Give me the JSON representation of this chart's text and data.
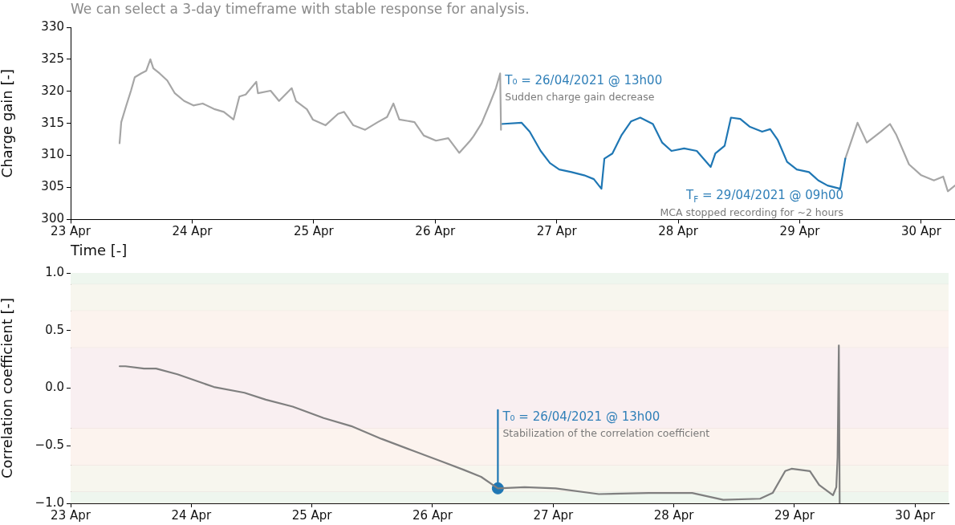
{
  "chart_data": [
    {
      "type": "line",
      "title": "We can select a 3-day timeframe with stable response for analysis.",
      "xlabel": "Time [-]",
      "ylabel": "Charge gain [-]",
      "xlim": [
        "2021-04-23T00:00",
        "2021-04-30T06:40"
      ],
      "xticks": [
        {
          "value": "2021-04-23",
          "label": "23 Apr"
        },
        {
          "value": "2021-04-24",
          "label": "24 Apr"
        },
        {
          "value": "2021-04-25",
          "label": "25 Apr"
        },
        {
          "value": "2021-04-26",
          "label": "26 Apr"
        },
        {
          "value": "2021-04-27",
          "label": "27 Apr"
        },
        {
          "value": "2021-04-28",
          "label": "28 Apr"
        },
        {
          "value": "2021-04-29",
          "label": "29 Apr"
        },
        {
          "value": "2021-04-30",
          "label": "30 Apr"
        }
      ],
      "ylim": [
        300,
        330
      ],
      "yticks": [
        300,
        305,
        310,
        315,
        320,
        325,
        330
      ],
      "grid": false,
      "series": [
        {
          "color": "#a6a6a6",
          "x": [
            "2021-04-23T09:40",
            "2021-04-23T10:00",
            "2021-04-23T10:55",
            "2021-04-23T11:55",
            "2021-04-23T12:40",
            "2021-04-23T13:55",
            "2021-04-23T14:55",
            "2021-04-23T15:45",
            "2021-04-23T16:20",
            "2021-04-23T17:35",
            "2021-04-23T19:05",
            "2021-04-23T20:35",
            "2021-04-23T22:25",
            "2021-04-24T00:15",
            "2021-04-24T02:05",
            "2021-04-24T04:30",
            "2021-04-24T06:15",
            "2021-04-24T08:10",
            "2021-04-24T09:20",
            "2021-04-24T10:35",
            "2021-04-24T12:40",
            "2021-04-24T13:00",
            "2021-04-24T15:30",
            "2021-04-24T17:10",
            "2021-04-24T19:40",
            "2021-04-24T20:30",
            "2021-04-24T22:40",
            "2021-04-24T23:50",
            "2021-04-25T02:20",
            "2021-04-25T04:50",
            "2021-04-25T06:00",
            "2021-04-25T07:50",
            "2021-04-25T10:10",
            "2021-04-25T12:40",
            "2021-04-25T14:30",
            "2021-04-25T15:45",
            "2021-04-25T16:55",
            "2021-04-25T19:55",
            "2021-04-25T21:45",
            "2021-04-26T00:10",
            "2021-04-26T02:35",
            "2021-04-26T04:45",
            "2021-04-26T06:55",
            "2021-04-26T07:35",
            "2021-04-26T09:10",
            "2021-04-26T10:45",
            "2021-04-26T12:00",
            "2021-04-26T12:50",
            "2021-04-26T13:00"
          ],
          "values": [
            311.9,
            315.2,
            317.6,
            320.1,
            322.2,
            322.8,
            323.2,
            325.0,
            323.6,
            322.8,
            321.7,
            319.7,
            318.5,
            317.8,
            318.1,
            317.2,
            316.8,
            315.6,
            319.2,
            319.5,
            321.5,
            319.7,
            320.1,
            318.5,
            320.5,
            318.5,
            317.2,
            315.6,
            314.7,
            316.5,
            316.8,
            314.7,
            314.0,
            315.2,
            316.0,
            318.1,
            315.6,
            315.2,
            313.1,
            312.3,
            312.7,
            310.4,
            312.3,
            313.0,
            315.0,
            318.0,
            320.5,
            322.8,
            314.0
          ]
        },
        {
          "color": "#1f77b4",
          "x": [
            "2021-04-26T13:00",
            "2021-04-26T17:05",
            "2021-04-26T18:40",
            "2021-04-26T20:50",
            "2021-04-26T22:40",
            "2021-04-27T00:30",
            "2021-04-27T02:55",
            "2021-04-27T05:25",
            "2021-04-27T07:20",
            "2021-04-27T08:50",
            "2021-04-27T09:25",
            "2021-04-27T11:00",
            "2021-04-27T12:50",
            "2021-04-27T14:40",
            "2021-04-27T16:30",
            "2021-04-27T19:00",
            "2021-04-27T20:50",
            "2021-04-27T22:40",
            "2021-04-28T01:10",
            "2021-04-28T03:40",
            "2021-04-28T06:25",
            "2021-04-28T07:20",
            "2021-04-28T09:10",
            "2021-04-28T10:25",
            "2021-04-28T12:15",
            "2021-04-28T14:05",
            "2021-04-28T16:35",
            "2021-04-28T18:10",
            "2021-04-28T19:40",
            "2021-04-28T21:30",
            "2021-04-28T23:25",
            "2021-04-29T01:50",
            "2021-04-29T03:40",
            "2021-04-29T05:30",
            "2021-04-29T08:00",
            "2021-04-29T09:00"
          ],
          "values": [
            314.9,
            315.1,
            313.7,
            310.7,
            308.8,
            307.8,
            307.4,
            306.9,
            306.3,
            304.8,
            309.5,
            310.3,
            313.2,
            315.3,
            315.9,
            314.9,
            312.0,
            310.7,
            311.1,
            310.7,
            308.2,
            310.3,
            311.5,
            315.9,
            315.7,
            314.5,
            313.7,
            314.1,
            312.4,
            309.0,
            307.8,
            307.4,
            306.1,
            305.3,
            304.8,
            309.5
          ]
        },
        {
          "color": "#a6a6a6",
          "x": [
            "2021-04-29T09:00",
            "2021-04-29T11:25",
            "2021-04-29T13:15",
            "2021-04-29T16:00",
            "2021-04-29T17:50",
            "2021-04-29T19:05",
            "2021-04-29T21:35",
            "2021-04-30T00:00",
            "2021-04-30T02:30",
            "2021-04-30T04:20",
            "2021-04-30T05:15",
            "2021-04-30T06:40"
          ],
          "values": [
            309.5,
            315.1,
            312.0,
            313.7,
            314.9,
            313.2,
            308.6,
            306.9,
            306.1,
            306.7,
            304.4,
            305.3
          ]
        }
      ],
      "annotations": [
        {
          "text": "T₀ = 26/04/2021 @ 13h00",
          "x": "2021-04-26T12:50",
          "y": 322.8
        },
        {
          "text": "Sudden charge gain decrease",
          "x": "2021-04-26T12:50",
          "y": 322.8
        },
        {
          "text": "T$_{F}$ = 29/04/2021 @ 09h00",
          "x": "2021-04-29T08:00",
          "y": 304.8
        },
        {
          "text": "MCA stopped recording for ~2 hours",
          "x": "2021-04-29T08:00",
          "y": 304.8
        }
      ]
    },
    {
      "type": "line",
      "ylabel": "Correlation coefficient [-]",
      "xlim": [
        "2021-04-23T00:00",
        "2021-04-30T06:40"
      ],
      "xticks": [
        {
          "value": "2021-04-23",
          "label": "23 Apr"
        },
        {
          "value": "2021-04-24",
          "label": "24 Apr"
        },
        {
          "value": "2021-04-25",
          "label": "25 Apr"
        },
        {
          "value": "2021-04-26",
          "label": "26 Apr"
        },
        {
          "value": "2021-04-27",
          "label": "27 Apr"
        },
        {
          "value": "2021-04-28",
          "label": "28 Apr"
        },
        {
          "value": "2021-04-29",
          "label": "29 Apr"
        },
        {
          "value": "2021-04-30",
          "label": "30 Apr"
        }
      ],
      "ylim": [
        -1,
        1
      ],
      "yticks": [
        {
          "value": -1,
          "label": "−1.0"
        },
        {
          "value": -0.5,
          "label": "−0.5"
        },
        {
          "value": 0,
          "label": "0.0"
        },
        {
          "value": 0.5,
          "label": "0.5"
        },
        {
          "value": 1,
          "label": "1.0"
        }
      ],
      "grid": false,
      "bands": [
        {
          "axis": "y",
          "from": 0.9,
          "to": 1,
          "color": "#eef6ee"
        },
        {
          "axis": "y",
          "from": 0.67,
          "to": 0.9,
          "color": "#f7f6ee"
        },
        {
          "axis": "y",
          "from": 0.35,
          "to": 0.67,
          "color": "#fcf3ee"
        },
        {
          "axis": "y",
          "from": -0.35,
          "to": 0.35,
          "color": "#f9eff1"
        },
        {
          "axis": "y",
          "from": -0.67,
          "to": -0.35,
          "color": "#fcf3ee"
        },
        {
          "axis": "y",
          "from": -0.9,
          "to": -0.67,
          "color": "#f7f6ee"
        },
        {
          "axis": "y",
          "from": -1,
          "to": -0.9,
          "color": "#eef6ee"
        }
      ],
      "series": [
        {
          "color": "#7f7f7f",
          "x": [
            "2021-04-23T09:45",
            "2021-04-23T10:55",
            "2021-04-23T14:35",
            "2021-04-23T17:00",
            "2021-04-23T21:15",
            "2021-04-24T04:30",
            "2021-04-24T10:35",
            "2021-04-24T14:50",
            "2021-04-24T20:10",
            "2021-04-25T02:20",
            "2021-04-25T07:50",
            "2021-04-25T13:50",
            "2021-04-25T19:55",
            "2021-04-26T02:00",
            "2021-04-26T06:15",
            "2021-04-26T09:40",
            "2021-04-26T13:00",
            "2021-04-26T18:20",
            "2021-04-27T00:30",
            "2021-04-27T09:05",
            "2021-04-27T19:00",
            "2021-04-28T03:40",
            "2021-04-28T09:50",
            "2021-04-28T17:10",
            "2021-04-28T19:40",
            "2021-04-28T22:10",
            "2021-04-28T23:25",
            "2021-04-29T03:05",
            "2021-04-29T04:55",
            "2021-04-29T07:40",
            "2021-04-29T08:20",
            "2021-04-29T08:35",
            "2021-04-29T08:50",
            "2021-04-29T09:00"
          ],
          "values": [
            0.19,
            0.19,
            0.17,
            0.17,
            0.12,
            0.01,
            -0.04,
            -0.1,
            -0.16,
            -0.26,
            -0.33,
            -0.44,
            -0.54,
            -0.64,
            -0.71,
            -0.77,
            -0.87,
            -0.86,
            -0.87,
            -0.92,
            -0.91,
            -0.91,
            -0.97,
            -0.96,
            -0.91,
            -0.72,
            -0.7,
            -0.72,
            -0.84,
            -0.93,
            -0.86,
            -0.6,
            0.37,
            -1.0
          ]
        },
        {
          "type": "line",
          "color": "#1f77b4",
          "x": [
            "2021-04-26T13:00",
            "2021-04-26T13:00"
          ],
          "values": [
            -0.87,
            -0.19
          ]
        },
        {
          "type": "scatter",
          "color": "#1f77b4",
          "x": [
            "2021-04-26T13:00"
          ],
          "values": [
            -0.87
          ]
        }
      ],
      "annotations": [
        {
          "text": "T₀ = 26/04/2021 @ 13h00",
          "x": "2021-04-26T13:00",
          "y": -0.19
        },
        {
          "text": "Stabilization of the correlation coefficient",
          "x": "2021-04-26T13:00",
          "y": -0.19
        }
      ]
    }
  ]
}
